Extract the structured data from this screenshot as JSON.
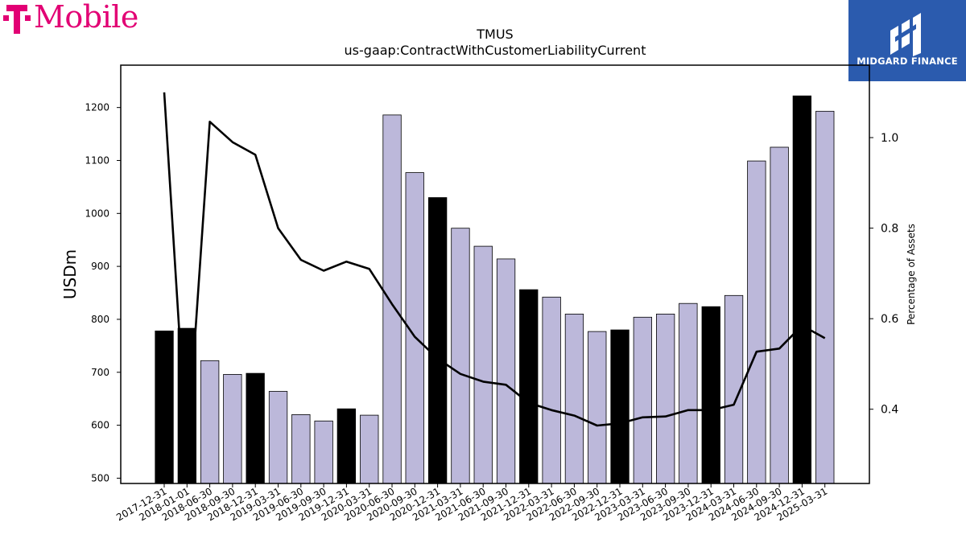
{
  "logos": {
    "left_brand": "T Mobile",
    "right_brand": "MIDGARD FINANCE"
  },
  "colors": {
    "brand_magenta": "#e20074",
    "midgard_blue": "#2b5bae",
    "bar_highlight": "#000000",
    "bar_default": "#bcb8da",
    "line": "#000000"
  },
  "chart_data": {
    "type": "bar",
    "title": "TMUS",
    "subtitle": "us-gaap:ContractWithCustomerLiabilityCurrent",
    "ylabel": "USDm",
    "y2label": "Percentage of Assets",
    "ylim": [
      490,
      1280
    ],
    "y2lim": [
      0.236,
      1.16
    ],
    "yticks": [
      "500",
      "600",
      "700",
      "800",
      "900",
      "1000",
      "1100",
      "1200"
    ],
    "y2ticks": [
      "0.4",
      "0.6",
      "0.8",
      "1.0"
    ],
    "categories": [
      "2017-12-31",
      "2018-01-01",
      "2018-06-30",
      "2018-09-30",
      "2018-12-31",
      "2019-03-31",
      "2019-06-30",
      "2019-09-30",
      "2019-12-31",
      "2020-03-31",
      "2020-06-30",
      "2020-09-30",
      "2020-12-31",
      "2021-03-31",
      "2021-06-30",
      "2021-09-30",
      "2021-12-31",
      "2022-03-31",
      "2022-06-30",
      "2022-09-30",
      "2022-12-31",
      "2023-03-31",
      "2023-06-30",
      "2023-09-30",
      "2023-12-31",
      "2024-03-31",
      "2024-06-30",
      "2024-09-30",
      "2024-12-31",
      "2025-03-31"
    ],
    "series": [
      {
        "type": "bar",
        "values": [
          778,
          783,
          722,
          696,
          698,
          664,
          620,
          608,
          631,
          619,
          1186,
          1077,
          1030,
          972,
          938,
          914,
          856,
          842,
          810,
          777,
          780,
          804,
          810,
          830,
          824,
          845,
          1099,
          1125,
          1222,
          1193
        ],
        "highlight": [
          true,
          true,
          false,
          false,
          true,
          false,
          false,
          false,
          true,
          false,
          false,
          false,
          true,
          false,
          false,
          false,
          true,
          false,
          false,
          false,
          true,
          false,
          false,
          false,
          true,
          false,
          false,
          false,
          true,
          false
        ]
      },
      {
        "type": "line",
        "axis": "right",
        "values": [
          1.1,
          0.3,
          1.035,
          0.99,
          0.962,
          0.8,
          0.73,
          0.706,
          0.726,
          0.71,
          0.632,
          0.56,
          0.512,
          0.478,
          0.461,
          0.454,
          0.414,
          0.398,
          0.386,
          0.364,
          0.369,
          0.382,
          0.384,
          0.398,
          0.398,
          0.41,
          0.527,
          0.534,
          0.585,
          0.557
        ]
      }
    ],
    "grid": false,
    "legend": "none"
  }
}
